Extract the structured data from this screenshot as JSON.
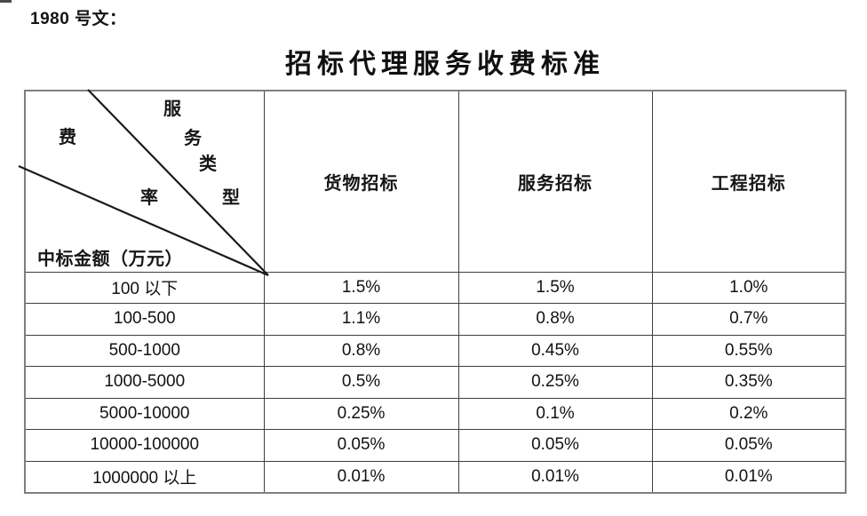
{
  "page": {
    "doc_ref": "1980 号文：",
    "title": "招标代理服务收费标准"
  },
  "table": {
    "corner": {
      "fee": "费",
      "rate": "率",
      "svc": [
        "服",
        "务",
        "类",
        "型"
      ],
      "amount_label": "中标金额（万元）"
    },
    "columns": [
      "货物招标",
      "服务招标",
      "工程招标"
    ],
    "rows": [
      {
        "range": "100 以下",
        "values": [
          "1.5%",
          "1.5%",
          "1.0%"
        ]
      },
      {
        "range": "100-500",
        "values": [
          "1.1%",
          "0.8%",
          "0.7%"
        ]
      },
      {
        "range": "500-1000",
        "values": [
          "0.8%",
          "0.45%",
          "0.55%"
        ]
      },
      {
        "range": "1000-5000",
        "values": [
          "0.5%",
          "0.25%",
          "0.35%"
        ]
      },
      {
        "range": "5000-10000",
        "values": [
          "0.25%",
          "0.1%",
          "0.2%"
        ]
      },
      {
        "range": "10000-100000",
        "values": [
          "0.05%",
          "0.05%",
          "0.05%"
        ]
      },
      {
        "range": "1000000 以上",
        "values": [
          "0.01%",
          "0.01%",
          "0.01%"
        ]
      }
    ],
    "colors": {
      "outer_border": "#7f7f7f",
      "inner_border": "#3f3f3f",
      "ink": "#1a1a1a",
      "background": "#ffffff"
    }
  }
}
